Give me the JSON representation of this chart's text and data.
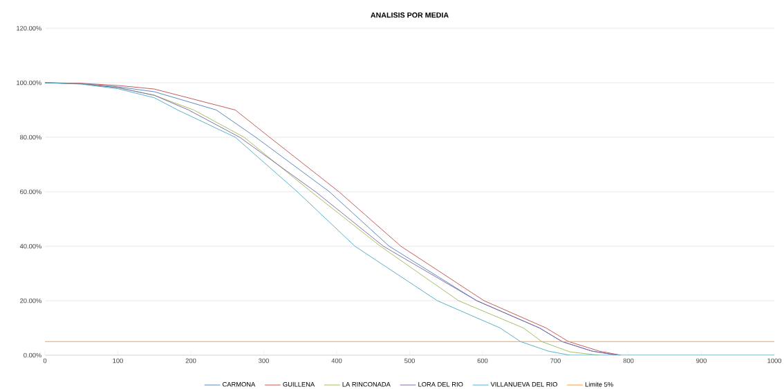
{
  "chart_data": {
    "type": "line",
    "title": "ANALISIS POR MEDIA",
    "xlim": [
      0,
      1000
    ],
    "xticks": [
      0,
      100,
      200,
      300,
      400,
      500,
      600,
      700,
      800,
      900,
      1000
    ],
    "ylim": [
      0,
      120
    ],
    "yticks": [
      {
        "value": 0,
        "label": "0.00%"
      },
      {
        "value": 20,
        "label": "20.00%"
      },
      {
        "value": 40,
        "label": "40.00%"
      },
      {
        "value": 60,
        "label": "60.00%"
      },
      {
        "value": 80,
        "label": "80.00%"
      },
      {
        "value": 100,
        "label": "100.00%"
      },
      {
        "value": 120,
        "label": "120.00%"
      }
    ],
    "grid": "y",
    "legend": "bottom",
    "marker": "none",
    "line_style": "solid",
    "series": [
      {
        "name": "CARMONA",
        "color": "#4f81bd",
        "x": [
          0,
          50,
          100,
          150,
          235,
          289,
          390,
          472,
          592,
          678,
          709,
          750,
          785
        ],
        "values": [
          100,
          99.7,
          98.5,
          96.7,
          90,
          80,
          60,
          40,
          20,
          10,
          5,
          1.5,
          0
        ]
      },
      {
        "name": "GUILLENA",
        "color": "#c0504d",
        "x": [
          0,
          50,
          100,
          150,
          261,
          308,
          403,
          488,
          602,
          687,
          718,
          760,
          790
        ],
        "values": [
          100,
          99.8,
          99,
          97.7,
          90,
          80,
          60,
          40,
          20,
          10,
          5,
          1.5,
          0
        ]
      },
      {
        "name": "LA RINCONADA",
        "color": "#9bbb59",
        "x": [
          0,
          50,
          100,
          150,
          204,
          273,
          365,
          460,
          567,
          656,
          681,
          720,
          760
        ],
        "values": [
          100,
          99.6,
          98.2,
          95.4,
          90,
          80,
          60,
          40,
          20,
          10,
          5,
          1.2,
          0
        ]
      },
      {
        "name": "LORA DEL RIO",
        "color": "#8064a2",
        "x": [
          0,
          50,
          100,
          150,
          197,
          267,
          371,
          464,
          592,
          678,
          709,
          750,
          785
        ],
        "values": [
          100,
          99.6,
          98.2,
          95.4,
          90,
          80,
          60,
          40,
          20,
          10,
          5,
          1.5,
          0
        ]
      },
      {
        "name": "VILLANUEVA DEL RIO",
        "color": "#4bacc6",
        "x": [
          0,
          50,
          100,
          150,
          182,
          261,
          346,
          425,
          538,
          624,
          652,
          690,
          720,
          1000
        ],
        "values": [
          100,
          99.5,
          97.8,
          94.5,
          90,
          80,
          60,
          40,
          20,
          10,
          5,
          1.5,
          0,
          0
        ]
      },
      {
        "name": "Limite 5%",
        "color": "#f79646",
        "x": [
          0,
          1000
        ],
        "values": [
          5,
          5
        ]
      }
    ]
  }
}
